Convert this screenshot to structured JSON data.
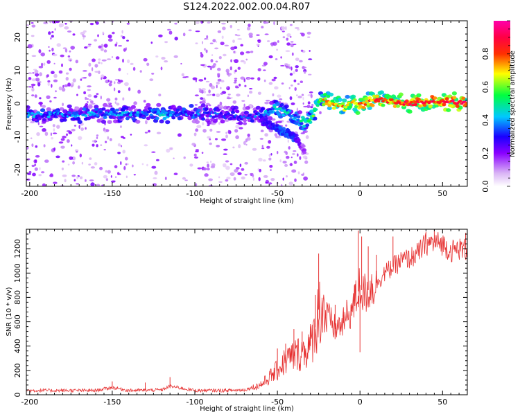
{
  "figure": {
    "title": "S124.2022.002.00.04.R07"
  },
  "chart_data": [
    {
      "type": "heatmap",
      "xlabel": "Height of straight line (km)",
      "ylabel": "Frequency (Hz)",
      "xlim": [
        -202,
        65
      ],
      "ylim": [
        -25,
        25
      ],
      "x_ticks": [
        -200,
        -150,
        -100,
        -50,
        0,
        50
      ],
      "x_tick_labels": [
        "-200",
        "-150",
        "-100",
        "-50",
        "0",
        "50"
      ],
      "y_ticks": [
        -20,
        -10,
        0,
        10,
        20
      ],
      "y_tick_labels": [
        "-20",
        "-10",
        "0",
        "10",
        "20"
      ],
      "colorbar": {
        "label": "Normalized spectral amplitude",
        "range": [
          0,
          1
        ],
        "ticks": [
          0.0,
          0.2,
          0.4,
          0.6,
          0.8
        ],
        "tick_labels": [
          "0.0",
          "0.2",
          "0.4",
          "0.6",
          "0.8"
        ],
        "colormap": "white-purple-blue-cyan-green-yellow-red-magenta"
      },
      "ridge": {
        "x": [
          -200,
          -180,
          -160,
          -140,
          -120,
          -100,
          -80,
          -65,
          -58,
          -52,
          -46,
          -40,
          -35,
          -30,
          -27,
          -24,
          -20,
          -15,
          -10,
          -5,
          0,
          5,
          10,
          15,
          20,
          30,
          40,
          50,
          65
        ],
        "y": [
          -3.5,
          -3.5,
          -3,
          -3,
          -3,
          -3,
          -3.5,
          -4,
          -3,
          -1.5,
          -2,
          -4,
          -5.5,
          -5,
          -2,
          1.5,
          1,
          0,
          -1,
          0.5,
          -0.5,
          0.5,
          1,
          1,
          0.5,
          0,
          0.5,
          0.5,
          0.5
        ],
        "amplitude": [
          0.35,
          0.32,
          0.33,
          0.35,
          0.38,
          0.33,
          0.27,
          0.27,
          0.4,
          0.45,
          0.4,
          0.4,
          0.45,
          0.5,
          0.55,
          0.6,
          0.75,
          0.7,
          0.72,
          0.65,
          0.8,
          0.75,
          0.8,
          0.75,
          0.8,
          0.85,
          0.85,
          0.85,
          0.85
        ]
      },
      "branch": {
        "x": [
          -60,
          -52,
          -46,
          -40,
          -36,
          -33
        ],
        "y": [
          -5,
          -7,
          -8.5,
          -10,
          -12,
          -14
        ],
        "amplitude": [
          0.25,
          0.3,
          0.35,
          0.3,
          0.2,
          0.12
        ]
      }
    },
    {
      "type": "line",
      "xlabel": "Height of straight line (km)",
      "ylabel": "SNR (10 * v/v)",
      "xlim": [
        -202,
        65
      ],
      "ylim": [
        0,
        1360
      ],
      "x_ticks": [
        -200,
        -150,
        -100,
        -50,
        0,
        50
      ],
      "x_tick_labels": [
        "-200",
        "-150",
        "-100",
        "-50",
        "0",
        "50"
      ],
      "y_ticks": [
        0,
        200,
        400,
        600,
        800,
        1000,
        1200
      ],
      "y_tick_labels": [
        "0",
        "200",
        "400",
        "600",
        "800",
        "1000",
        "1200"
      ],
      "line_color": "#e63030",
      "trend": {
        "x": [
          -202,
          -160,
          -150,
          -140,
          -120,
          -115,
          -100,
          -80,
          -70,
          -60,
          -55,
          -50,
          -45,
          -40,
          -35,
          -30,
          -28,
          -26,
          -25,
          -23,
          -20,
          -15,
          -10,
          -5,
          -2,
          0,
          2,
          5,
          10,
          15,
          20,
          25,
          30,
          35,
          40,
          45,
          50,
          55,
          60,
          65
        ],
        "y": [
          35,
          35,
          60,
          35,
          40,
          70,
          35,
          35,
          40,
          80,
          140,
          200,
          280,
          320,
          350,
          400,
          500,
          600,
          700,
          720,
          650,
          540,
          590,
          700,
          800,
          900,
          820,
          860,
          920,
          1000,
          1050,
          1100,
          1120,
          1160,
          1240,
          1250,
          1240,
          1180,
          1200,
          1190
        ]
      },
      "spikes": {
        "x": [
          -150,
          -130,
          -115,
          -60,
          -50,
          -45,
          -40,
          -35,
          -30,
          -27,
          -25,
          -23,
          -20,
          -15,
          -10,
          -8,
          -5,
          -3,
          -1,
          0,
          1,
          5,
          10,
          20,
          40,
          45,
          64
        ],
        "y": [
          110,
          100,
          145,
          110,
          380,
          420,
          540,
          520,
          580,
          820,
          1160,
          700,
          760,
          740,
          660,
          780,
          650,
          910,
          1350,
          350,
          1300,
          1220,
          1150,
          1300,
          1340,
          1360,
          1330
        ]
      }
    }
  ]
}
